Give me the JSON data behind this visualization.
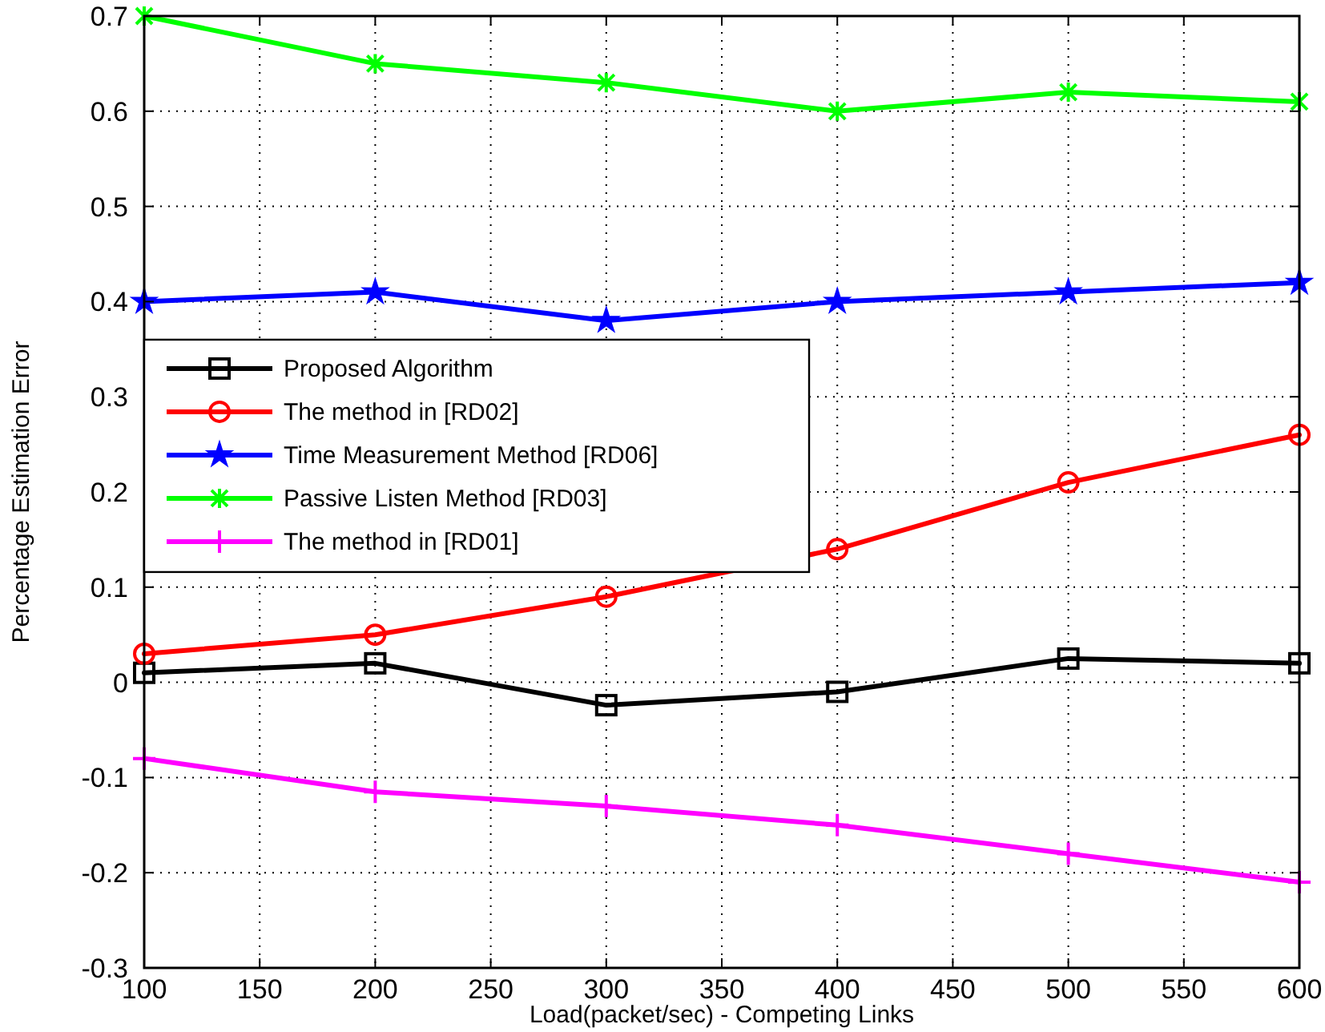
{
  "chart_data": {
    "type": "line",
    "xlabel": "Load(packet/sec) - Competing Links",
    "ylabel": "Percentage Estimation Error",
    "x": [
      100,
      200,
      300,
      400,
      500,
      600
    ],
    "series": [
      {
        "name": "Proposed Algorithm",
        "color": "#000000",
        "marker": "square",
        "values": [
          0.01,
          0.02,
          -0.024,
          -0.01,
          0.025,
          0.02
        ]
      },
      {
        "name": "The method in [RD02]",
        "color": "#ff0000",
        "marker": "circle",
        "values": [
          0.03,
          0.05,
          0.09,
          0.14,
          0.21,
          0.26
        ]
      },
      {
        "name": "Time Measurement Method [RD06]",
        "color": "#0000ff",
        "marker": "star",
        "values": [
          0.4,
          0.41,
          0.38,
          0.4,
          0.41,
          0.42
        ]
      },
      {
        "name": "Passive Listen Method [RD03]",
        "color": "#00ff00",
        "marker": "cross",
        "values": [
          0.7,
          0.65,
          0.63,
          0.6,
          0.62,
          0.61
        ]
      },
      {
        "name": "The method in [RD01]",
        "color": "#ff00ff",
        "marker": "plus",
        "values": [
          -0.08,
          -0.115,
          -0.13,
          -0.15,
          -0.18,
          -0.21
        ]
      }
    ],
    "xlim": [
      100,
      600
    ],
    "xticks": [
      100,
      150,
      200,
      250,
      300,
      350,
      400,
      450,
      500,
      550,
      600
    ],
    "ylim": [
      -0.3,
      0.7
    ],
    "yticks": [
      -0.3,
      -0.2,
      -0.1,
      0,
      0.1,
      0.2,
      0.3,
      0.4,
      0.5,
      0.6,
      0.7
    ],
    "grid": true,
    "legend": "left",
    "line_style": "solid"
  }
}
